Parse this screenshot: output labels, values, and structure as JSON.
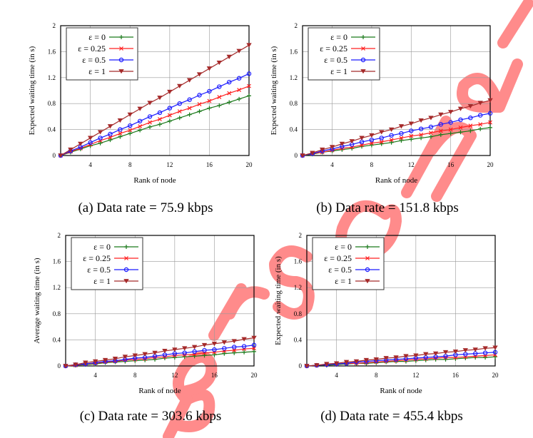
{
  "watermark": "Personal",
  "watermark_color": "#f77",
  "chart_data": [
    {
      "type": "line",
      "caption": "(a)  Data rate = 75.9 kbps",
      "xlabel": "Rank of node",
      "ylabel": "Expected waiting time (in s)",
      "xlim": [
        1,
        20
      ],
      "ylim": [
        0,
        2
      ],
      "xticks": [
        4,
        8,
        12,
        16,
        20
      ],
      "yticks": [
        0,
        0.4,
        0.8,
        1.2,
        1.6,
        2
      ],
      "grid": true,
      "legend": "top-left",
      "x": [
        1,
        2,
        3,
        4,
        5,
        6,
        7,
        8,
        9,
        10,
        11,
        12,
        13,
        14,
        15,
        16,
        17,
        18,
        19,
        20
      ],
      "series": [
        {
          "name": "ε = 0",
          "color": "#1a7a1a",
          "marker": "plus",
          "values": [
            0,
            0.05,
            0.1,
            0.15,
            0.19,
            0.24,
            0.29,
            0.34,
            0.39,
            0.44,
            0.48,
            0.53,
            0.58,
            0.63,
            0.68,
            0.73,
            0.77,
            0.82,
            0.87,
            0.92
          ]
        },
        {
          "name": "ε = 0.25",
          "color": "#ff2020",
          "marker": "cross",
          "values": [
            0,
            0.06,
            0.11,
            0.17,
            0.23,
            0.28,
            0.34,
            0.39,
            0.45,
            0.51,
            0.56,
            0.62,
            0.68,
            0.73,
            0.79,
            0.84,
            0.9,
            0.96,
            1.01,
            1.07
          ]
        },
        {
          "name": "ε = 0.5",
          "color": "#1a1aff",
          "marker": "circle",
          "values": [
            0,
            0.07,
            0.13,
            0.2,
            0.27,
            0.33,
            0.4,
            0.46,
            0.53,
            0.6,
            0.66,
            0.73,
            0.8,
            0.86,
            0.93,
            0.99,
            1.06,
            1.13,
            1.19,
            1.26
          ]
        },
        {
          "name": "ε = 1",
          "color": "#a52a2a",
          "marker": "triangle-down",
          "values": [
            0,
            0.09,
            0.18,
            0.27,
            0.36,
            0.45,
            0.54,
            0.63,
            0.72,
            0.81,
            0.89,
            0.98,
            1.07,
            1.16,
            1.25,
            1.34,
            1.43,
            1.52,
            1.61,
            1.7
          ]
        }
      ]
    },
    {
      "type": "line",
      "caption": "(b)  Data rate = 151.8 kbps",
      "xlabel": "Rank of node",
      "ylabel": "Expected waiting time (in s)",
      "xlim": [
        1,
        20
      ],
      "ylim": [
        0,
        2
      ],
      "xticks": [
        4,
        8,
        12,
        16,
        20
      ],
      "yticks": [
        0,
        0.4,
        0.8,
        1.2,
        1.6,
        2
      ],
      "grid": true,
      "legend": "top-left",
      "x": [
        1,
        2,
        3,
        4,
        5,
        6,
        7,
        8,
        9,
        10,
        11,
        12,
        13,
        14,
        15,
        16,
        17,
        18,
        19,
        20
      ],
      "series": [
        {
          "name": "ε = 0",
          "color": "#1a7a1a",
          "marker": "plus",
          "values": [
            0,
            0.02,
            0.05,
            0.07,
            0.09,
            0.11,
            0.14,
            0.16,
            0.18,
            0.2,
            0.23,
            0.25,
            0.27,
            0.29,
            0.32,
            0.34,
            0.36,
            0.38,
            0.41,
            0.43
          ]
        },
        {
          "name": "ε = 0.25",
          "color": "#ff2020",
          "marker": "cross",
          "values": [
            0,
            0.03,
            0.05,
            0.08,
            0.11,
            0.13,
            0.16,
            0.19,
            0.21,
            0.24,
            0.27,
            0.3,
            0.32,
            0.35,
            0.38,
            0.4,
            0.43,
            0.46,
            0.48,
            0.51
          ]
        },
        {
          "name": "ε = 0.5",
          "color": "#1a1aff",
          "marker": "circle",
          "values": [
            0,
            0.03,
            0.07,
            0.1,
            0.14,
            0.17,
            0.21,
            0.24,
            0.27,
            0.31,
            0.34,
            0.38,
            0.41,
            0.44,
            0.48,
            0.51,
            0.55,
            0.58,
            0.62,
            0.65
          ]
        },
        {
          "name": "ε = 1",
          "color": "#a52a2a",
          "marker": "triangle-down",
          "values": [
            0,
            0.04,
            0.09,
            0.13,
            0.18,
            0.22,
            0.27,
            0.31,
            0.36,
            0.4,
            0.45,
            0.49,
            0.54,
            0.58,
            0.63,
            0.67,
            0.72,
            0.76,
            0.81,
            0.85
          ]
        }
      ]
    },
    {
      "type": "line",
      "caption": "(c)  Data rate = 303.6 kbps",
      "xlabel": "Rank of node",
      "ylabel": "Average waiting time (in s)",
      "xlim": [
        1,
        20
      ],
      "ylim": [
        0,
        2
      ],
      "xticks": [
        4,
        8,
        12,
        16,
        20
      ],
      "yticks": [
        0,
        0.4,
        0.8,
        1.2,
        1.6,
        2
      ],
      "grid": true,
      "legend": "top-left",
      "x": [
        1,
        2,
        3,
        4,
        5,
        6,
        7,
        8,
        9,
        10,
        11,
        12,
        13,
        14,
        15,
        16,
        17,
        18,
        19,
        20
      ],
      "series": [
        {
          "name": "ε = 0",
          "color": "#1a7a1a",
          "marker": "plus",
          "values": [
            0,
            0.01,
            0.02,
            0.03,
            0.05,
            0.06,
            0.07,
            0.08,
            0.09,
            0.1,
            0.12,
            0.13,
            0.14,
            0.15,
            0.16,
            0.17,
            0.19,
            0.2,
            0.21,
            0.22
          ]
        },
        {
          "name": "ε = 0.25",
          "color": "#ff2020",
          "marker": "cross",
          "values": [
            0,
            0.01,
            0.03,
            0.04,
            0.06,
            0.07,
            0.09,
            0.1,
            0.11,
            0.13,
            0.14,
            0.16,
            0.17,
            0.18,
            0.2,
            0.21,
            0.23,
            0.24,
            0.26,
            0.27
          ]
        },
        {
          "name": "ε = 0.5",
          "color": "#1a1aff",
          "marker": "circle",
          "values": [
            0,
            0.02,
            0.03,
            0.05,
            0.07,
            0.08,
            0.1,
            0.12,
            0.13,
            0.15,
            0.17,
            0.19,
            0.2,
            0.22,
            0.24,
            0.25,
            0.27,
            0.29,
            0.3,
            0.32
          ]
        },
        {
          "name": "ε = 1",
          "color": "#a52a2a",
          "marker": "triangle-down",
          "values": [
            0,
            0.02,
            0.05,
            0.07,
            0.09,
            0.11,
            0.14,
            0.16,
            0.18,
            0.2,
            0.23,
            0.25,
            0.27,
            0.29,
            0.32,
            0.34,
            0.36,
            0.38,
            0.41,
            0.43
          ]
        }
      ]
    },
    {
      "type": "line",
      "caption": "(d)  Data rate = 455.4 kbps",
      "xlabel": "Rank of node",
      "ylabel": "Expected waiting time (in s)",
      "xlim": [
        1,
        20
      ],
      "ylim": [
        0,
        2
      ],
      "xticks": [
        4,
        8,
        12,
        16,
        20
      ],
      "yticks": [
        0,
        0.4,
        0.8,
        1.2,
        1.6,
        2
      ],
      "grid": true,
      "legend": "top-left",
      "x": [
        1,
        2,
        3,
        4,
        5,
        6,
        7,
        8,
        9,
        10,
        11,
        12,
        13,
        14,
        15,
        16,
        17,
        18,
        19,
        20
      ],
      "series": [
        {
          "name": "ε = 0",
          "color": "#1a7a1a",
          "marker": "plus",
          "values": [
            0,
            0.01,
            0.01,
            0.02,
            0.03,
            0.04,
            0.04,
            0.05,
            0.06,
            0.07,
            0.07,
            0.08,
            0.09,
            0.1,
            0.1,
            0.11,
            0.12,
            0.13,
            0.13,
            0.14
          ]
        },
        {
          "name": "ε = 0.25",
          "color": "#ff2020",
          "marker": "cross",
          "values": [
            0,
            0.01,
            0.02,
            0.03,
            0.04,
            0.04,
            0.05,
            0.06,
            0.07,
            0.08,
            0.09,
            0.1,
            0.11,
            0.12,
            0.13,
            0.13,
            0.14,
            0.15,
            0.16,
            0.17
          ]
        },
        {
          "name": "ε = 0.5",
          "color": "#1a1aff",
          "marker": "circle",
          "values": [
            0,
            0.01,
            0.02,
            0.03,
            0.04,
            0.06,
            0.07,
            0.08,
            0.09,
            0.1,
            0.11,
            0.12,
            0.13,
            0.14,
            0.15,
            0.17,
            0.18,
            0.19,
            0.2,
            0.21
          ]
        },
        {
          "name": "ε = 1",
          "color": "#a52a2a",
          "marker": "triangle-down",
          "values": [
            0,
            0.01,
            0.03,
            0.04,
            0.06,
            0.07,
            0.09,
            0.1,
            0.12,
            0.13,
            0.15,
            0.16,
            0.18,
            0.19,
            0.21,
            0.22,
            0.24,
            0.25,
            0.27,
            0.28
          ]
        }
      ]
    }
  ]
}
